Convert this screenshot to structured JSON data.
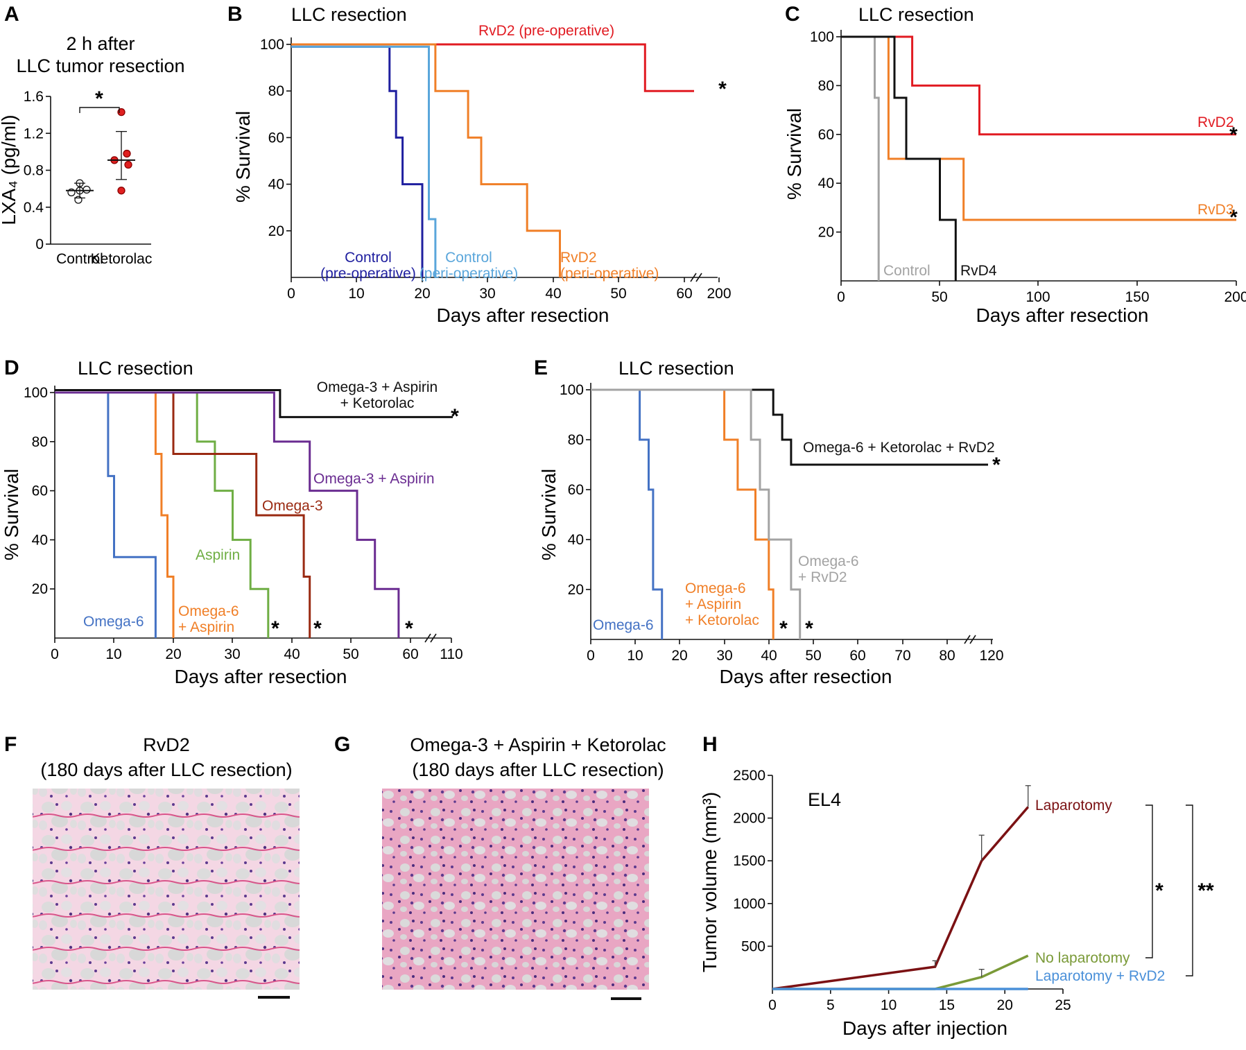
{
  "colors": {
    "red": "#e11b22",
    "orange": "#f07f27",
    "navy": "#1f1f9f",
    "lightblue": "#5aa6db",
    "black": "#111111",
    "gray": "#a3a3a3",
    "blue": "#4472c4",
    "brown": "#9a2a12",
    "green": "#6fae44",
    "purple": "#6a2c91",
    "maroon": "#7b1113",
    "olive": "#7a9a38",
    "teal_blue": "#4a90d9",
    "dot_red": "#e02020"
  },
  "chart_data": [
    {
      "id": "A",
      "panel_label": "A",
      "type": "scatter",
      "title": [
        "2 h after",
        "LLC tumor resection"
      ],
      "ylabel": "LXA₄ (pg/ml)",
      "yticks": [
        "0",
        "0.4",
        "0.8",
        "1.2",
        "1.6"
      ],
      "ylim": [
        0,
        1.6
      ],
      "categories": [
        "Control",
        "Ketorolac"
      ],
      "series": [
        {
          "name": "Control",
          "values": [
            0.56,
            0.58,
            0.59,
            0.66,
            0.48
          ],
          "mean": 0.58,
          "sd_low": 0.5,
          "sd_high": 0.66,
          "fill": "white"
        },
        {
          "name": "Ketorolac",
          "values": [
            1.43,
            0.98,
            0.91,
            0.86,
            0.58
          ],
          "mean": 0.91,
          "sd_low": 0.7,
          "sd_high": 1.22,
          "fill": "red"
        }
      ],
      "significance": "*"
    },
    {
      "id": "B",
      "panel_label": "B",
      "type": "line",
      "title": "LLC resection",
      "xlabel": "Days after resection",
      "ylabel": "% Survival",
      "xticks": [
        "0",
        "10",
        "20",
        "30",
        "40",
        "50",
        "60",
        "200"
      ],
      "yticks": [
        "20",
        "40",
        "60",
        "80",
        "100"
      ],
      "series": [
        {
          "name": "RvD2 (pre-operative)",
          "color": "red",
          "x": [
            0,
            54,
            54,
            65
          ],
          "y": [
            100,
            100,
            80,
            80
          ],
          "star": "*"
        },
        {
          "name": "Control (pre-operative)",
          "color": "navy",
          "x": [
            0,
            15,
            15,
            16,
            16,
            17,
            17,
            20,
            20
          ],
          "y": [
            99,
            99,
            80,
            80,
            60,
            60,
            40,
            40,
            0
          ]
        },
        {
          "name": "Control (peri-operative)",
          "color": "lightblue",
          "x": [
            0,
            21,
            21,
            22,
            22
          ],
          "y": [
            99,
            99,
            25,
            25,
            0
          ]
        },
        {
          "name": "RvD2 (peri-operative)",
          "color": "orange",
          "x": [
            0,
            22,
            22,
            27,
            27,
            29,
            29,
            36,
            36,
            41,
            41
          ],
          "y": [
            100,
            100,
            80,
            80,
            60,
            60,
            40,
            40,
            20,
            20,
            0
          ]
        }
      ],
      "labels": [
        {
          "text": [
            "RvD2 (pre-operative)"
          ],
          "color": "red"
        },
        {
          "text": [
            "Control",
            "(pre-operative)"
          ],
          "color": "navy"
        },
        {
          "text": [
            "Control",
            "(peri-operative)"
          ],
          "color": "lightblue"
        },
        {
          "text": [
            "RvD2",
            "(peri-operative)"
          ],
          "color": "orange"
        }
      ]
    },
    {
      "id": "C",
      "panel_label": "C",
      "type": "line",
      "title": "LLC resection",
      "xlabel": "Days after resection",
      "ylabel": "% Survival",
      "xticks": [
        "0",
        "50",
        "100",
        "150",
        "200"
      ],
      "yticks": [
        "20",
        "40",
        "60",
        "80",
        "100"
      ],
      "series": [
        {
          "name": "RvD2",
          "color": "red",
          "x": [
            0,
            36,
            36,
            70,
            70,
            200
          ],
          "y": [
            100,
            100,
            80,
            80,
            60,
            60
          ],
          "star": "*"
        },
        {
          "name": "RvD3",
          "color": "orange",
          "x": [
            0,
            24,
            24,
            62,
            62,
            200
          ],
          "y": [
            100,
            100,
            50,
            50,
            25,
            25
          ],
          "star": "*"
        },
        {
          "name": "Control",
          "color": "gray",
          "x": [
            0,
            17,
            17,
            19,
            19
          ],
          "y": [
            100,
            100,
            75,
            75,
            0
          ]
        },
        {
          "name": "RvD4",
          "color": "black",
          "x": [
            0,
            27,
            27,
            33,
            33,
            50,
            50,
            58,
            58
          ],
          "y": [
            100,
            100,
            75,
            75,
            50,
            50,
            25,
            25,
            0
          ]
        }
      ],
      "labels": [
        {
          "text": [
            "RvD2"
          ],
          "color": "red"
        },
        {
          "text": [
            "RvD3"
          ],
          "color": "orange"
        },
        {
          "text": [
            "Control"
          ],
          "color": "gray"
        },
        {
          "text": [
            "RvD4"
          ],
          "color": "black"
        }
      ]
    },
    {
      "id": "D",
      "panel_label": "D",
      "type": "line",
      "title": "LLC resection",
      "xlabel": "Days after resection",
      "ylabel": "% Survival",
      "xticks": [
        "0",
        "10",
        "20",
        "30",
        "40",
        "50",
        "60",
        "110"
      ],
      "yticks": [
        "20",
        "40",
        "60",
        "80",
        "100"
      ],
      "series": [
        {
          "name": "Omega-3 + Aspirin + Ketorolac",
          "color": "black",
          "x": [
            0,
            38,
            38,
            66
          ],
          "y": [
            101,
            101,
            90,
            90
          ],
          "star": "*"
        },
        {
          "name": "Omega-6",
          "color": "blue",
          "x": [
            0,
            9,
            9,
            10,
            10,
            17,
            17
          ],
          "y": [
            100,
            100,
            66,
            66,
            33,
            33,
            0
          ]
        },
        {
          "name": "Omega-6 + Aspirin",
          "color": "orange",
          "x": [
            0,
            17,
            17,
            18,
            18,
            19,
            19,
            20,
            20
          ],
          "y": [
            100,
            100,
            75,
            75,
            50,
            50,
            25,
            25,
            0
          ]
        },
        {
          "name": "Aspirin",
          "color": "green",
          "x": [
            0,
            24,
            24,
            27,
            27,
            30,
            30,
            33,
            33,
            36,
            36
          ],
          "y": [
            100,
            100,
            80,
            80,
            60,
            60,
            40,
            40,
            20,
            20,
            0
          ],
          "star": "*"
        },
        {
          "name": "Omega-3",
          "color": "brown",
          "x": [
            0,
            20,
            20,
            34,
            34,
            42,
            42,
            43,
            43
          ],
          "y": [
            100,
            100,
            75,
            75,
            50,
            50,
            25,
            25,
            0
          ],
          "star": "*"
        },
        {
          "name": "Omega-3 + Aspirin",
          "color": "purple",
          "x": [
            0,
            37,
            37,
            43,
            43,
            51,
            51,
            54,
            54,
            58,
            58
          ],
          "y": [
            100,
            100,
            80,
            80,
            60,
            60,
            40,
            40,
            20,
            20,
            0
          ],
          "star": "*"
        }
      ],
      "labels": [
        {
          "text": [
            "Omega-3 + Aspirin",
            "+ Ketorolac"
          ],
          "color": "black"
        },
        {
          "text": [
            "Omega-3 + Aspirin"
          ],
          "color": "purple"
        },
        {
          "text": [
            "Omega-3"
          ],
          "color": "brown"
        },
        {
          "text": [
            "Aspirin"
          ],
          "color": "green"
        },
        {
          "text": [
            "Omega-6"
          ],
          "color": "blue"
        },
        {
          "text": [
            "Omega-6",
            "+ Aspirin"
          ],
          "color": "orange"
        }
      ]
    },
    {
      "id": "E",
      "panel_label": "E",
      "type": "line",
      "title": "LLC resection",
      "xlabel": "Days after resection",
      "ylabel": "% Survival",
      "xticks": [
        "0",
        "10",
        "20",
        "30",
        "40",
        "50",
        "60",
        "70",
        "80",
        "120"
      ],
      "yticks": [
        "20",
        "40",
        "60",
        "80",
        "100"
      ],
      "series": [
        {
          "name": "Omega-6 + Ketorolac + RvD2",
          "color": "black",
          "x": [
            0,
            41,
            41,
            43,
            43,
            45,
            45,
            91
          ],
          "y": [
            100,
            100,
            90,
            90,
            80,
            80,
            70,
            70
          ],
          "star": "*"
        },
        {
          "name": "Omega-6",
          "color": "blue",
          "x": [
            0,
            11,
            11,
            13,
            13,
            14,
            14,
            16,
            16
          ],
          "y": [
            100,
            100,
            80,
            80,
            60,
            60,
            20,
            20,
            0
          ]
        },
        {
          "name": "Omega-6 + Aspirin + Ketorolac",
          "color": "orange",
          "x": [
            0,
            30,
            30,
            33,
            33,
            37,
            37,
            40,
            40,
            41,
            41
          ],
          "y": [
            100,
            100,
            80,
            80,
            60,
            60,
            40,
            40,
            20,
            20,
            0
          ],
          "star": "*"
        },
        {
          "name": "Omega-6 + RvD2",
          "color": "gray",
          "x": [
            0,
            36,
            36,
            38,
            38,
            40,
            40,
            45,
            45,
            47,
            47
          ],
          "y": [
            100,
            100,
            80,
            80,
            60,
            60,
            40,
            40,
            20,
            20,
            0
          ],
          "star": "*"
        }
      ],
      "labels": [
        {
          "text": [
            "Omega-6 + Ketorolac + RvD2"
          ],
          "color": "black"
        },
        {
          "text": [
            "Omega-6"
          ],
          "color": "blue"
        },
        {
          "text": [
            "Omega-6",
            "+ Aspirin",
            "+ Ketorolac"
          ],
          "color": "orange"
        },
        {
          "text": [
            "Omega-6",
            "+ RvD2"
          ],
          "color": "gray"
        }
      ]
    },
    {
      "id": "H",
      "panel_label": "H",
      "type": "line",
      "title": "EL4",
      "xlabel": "Days after injection",
      "ylabel": "Tumor volume (mm³)",
      "xticks": [
        "0",
        "5",
        "10",
        "15",
        "20",
        "25"
      ],
      "yticks": [
        "500",
        "1000",
        "1500",
        "2000",
        "2500"
      ],
      "xlim": [
        0,
        25
      ],
      "ylim": [
        0,
        2500
      ],
      "series": [
        {
          "name": "Laparotomy",
          "color": "maroon",
          "x": [
            0,
            14,
            18,
            22
          ],
          "y": [
            0,
            260,
            1500,
            2130
          ],
          "err": [
            0,
            70,
            300,
            250
          ]
        },
        {
          "name": "No laparotomy",
          "color": "olive",
          "x": [
            0,
            14,
            18,
            22
          ],
          "y": [
            0,
            0,
            140,
            390
          ],
          "err": [
            0,
            0,
            90,
            0
          ]
        },
        {
          "name": "Laparotomy + RvD2",
          "color": "teal_blue",
          "x": [
            0,
            14,
            18,
            22
          ],
          "y": [
            0,
            0,
            0,
            0
          ],
          "err": [
            0,
            0,
            0,
            0
          ]
        }
      ],
      "significance": [
        "*",
        "**"
      ]
    }
  ],
  "histology": [
    {
      "panel_label": "F",
      "title": [
        "RvD2",
        "(180 days after LLC resection)"
      ]
    },
    {
      "panel_label": "G",
      "title": [
        "Omega-3 + Aspirin + Ketorolac",
        "(180 days after LLC resection)"
      ]
    }
  ]
}
